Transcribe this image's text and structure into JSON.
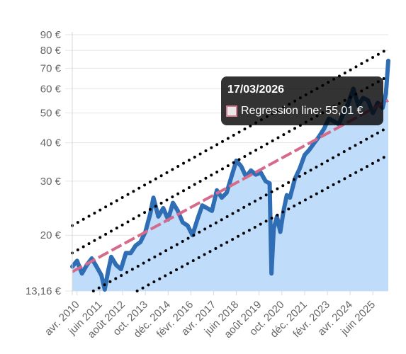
{
  "chart_data": {
    "type": "area",
    "y_scale": "log",
    "ylim": [
      13.16,
      90
    ],
    "y_ticks": [
      {
        "value": 90,
        "label": "90 €"
      },
      {
        "value": 80,
        "label": "80 €"
      },
      {
        "value": 70,
        "label": "70 €"
      },
      {
        "value": 60,
        "label": "60 €"
      },
      {
        "value": 50,
        "label": "50 €"
      },
      {
        "value": 40,
        "label": "40 €"
      },
      {
        "value": 30,
        "label": "30 €"
      },
      {
        "value": 20,
        "label": "20 €"
      },
      {
        "value": 13.16,
        "label": "13,16 €"
      }
    ],
    "xlim": [
      "2010-01-01",
      "2026-03-17"
    ],
    "x_ticks": [
      {
        "value": "2010-04-01",
        "label": "avr. 2010"
      },
      {
        "value": "2011-06-01",
        "label": "juin 2011"
      },
      {
        "value": "2012-08-01",
        "label": "août 2012"
      },
      {
        "value": "2013-10-01",
        "label": "oct. 2013"
      },
      {
        "value": "2014-12-01",
        "label": "déc. 2014"
      },
      {
        "value": "2016-02-01",
        "label": "févr. 2016"
      },
      {
        "value": "2017-04-01",
        "label": "avr. 2017"
      },
      {
        "value": "2018-06-01",
        "label": "juin 2018"
      },
      {
        "value": "2019-08-01",
        "label": "août 2019"
      },
      {
        "value": "2020-10-01",
        "label": "oct. 2020"
      },
      {
        "value": "2021-12-01",
        "label": "déc. 2021"
      },
      {
        "value": "2023-02-01",
        "label": "févr. 2023"
      },
      {
        "value": "2024-04-01",
        "label": "avr. 2024"
      },
      {
        "value": "2025-06-01",
        "label": "juin 2025"
      }
    ],
    "series": [
      {
        "kind": "price",
        "color": "#2f6db5",
        "fill": "#bfdcfa",
        "points": [
          [
            "2010-01-01",
            15.8
          ],
          [
            "2010-04-01",
            16.5
          ],
          [
            "2010-07-01",
            15.0
          ],
          [
            "2010-10-01",
            16.0
          ],
          [
            "2011-01-01",
            16.8
          ],
          [
            "2011-04-01",
            15.8
          ],
          [
            "2011-07-01",
            14.8
          ],
          [
            "2011-09-01",
            13.3
          ],
          [
            "2011-11-01",
            15.2
          ],
          [
            "2012-01-01",
            17.0
          ],
          [
            "2012-04-01",
            16.0
          ],
          [
            "2012-07-01",
            15.5
          ],
          [
            "2012-10-01",
            17.5
          ],
          [
            "2013-01-01",
            17.5
          ],
          [
            "2013-04-01",
            18.5
          ],
          [
            "2013-07-01",
            19.0
          ],
          [
            "2013-10-01",
            20.5
          ],
          [
            "2014-01-01",
            23.5
          ],
          [
            "2014-03-01",
            26.5
          ],
          [
            "2014-06-01",
            23.0
          ],
          [
            "2014-09-01",
            24.5
          ],
          [
            "2014-12-01",
            22.5
          ],
          [
            "2015-03-01",
            25.5
          ],
          [
            "2015-06-01",
            24.0
          ],
          [
            "2015-09-01",
            22.0
          ],
          [
            "2015-12-01",
            21.5
          ],
          [
            "2016-03-01",
            20.0
          ],
          [
            "2016-06-01",
            22.5
          ],
          [
            "2016-09-01",
            25.0
          ],
          [
            "2016-12-01",
            24.5
          ],
          [
            "2017-03-01",
            24.0
          ],
          [
            "2017-06-01",
            28.0
          ],
          [
            "2017-09-01",
            26.5
          ],
          [
            "2017-12-01",
            27.5
          ],
          [
            "2018-03-01",
            31.0
          ],
          [
            "2018-06-01",
            35.0
          ],
          [
            "2018-09-01",
            33.5
          ],
          [
            "2018-12-01",
            31.0
          ],
          [
            "2019-03-01",
            32.5
          ],
          [
            "2019-06-01",
            31.5
          ],
          [
            "2019-09-01",
            32.0
          ],
          [
            "2019-12-01",
            30.0
          ],
          [
            "2020-02-15",
            29.5
          ],
          [
            "2020-03-20",
            15.0
          ],
          [
            "2020-05-01",
            21.0
          ],
          [
            "2020-07-01",
            23.0
          ],
          [
            "2020-09-01",
            20.5
          ],
          [
            "2020-11-01",
            24.0
          ],
          [
            "2021-01-01",
            27.0
          ],
          [
            "2021-03-01",
            26.5
          ],
          [
            "2021-06-01",
            30.5
          ],
          [
            "2021-09-01",
            33.0
          ],
          [
            "2021-12-01",
            36.5
          ],
          [
            "2022-03-01",
            38.0
          ],
          [
            "2022-06-01",
            40.0
          ],
          [
            "2022-09-01",
            42.0
          ],
          [
            "2022-12-01",
            44.5
          ],
          [
            "2023-03-01",
            48.0
          ],
          [
            "2023-06-01",
            47.0
          ],
          [
            "2023-09-01",
            46.0
          ],
          [
            "2023-12-01",
            50.0
          ],
          [
            "2024-03-01",
            54.0
          ],
          [
            "2024-06-01",
            60.0
          ],
          [
            "2024-09-01",
            53.0
          ],
          [
            "2024-12-01",
            56.0
          ],
          [
            "2025-03-01",
            55.0
          ],
          [
            "2025-06-01",
            50.0
          ],
          [
            "2025-09-01",
            54.0
          ],
          [
            "2025-12-01",
            52.0
          ],
          [
            "2026-02-01",
            58.0
          ],
          [
            "2026-03-17",
            74.0
          ]
        ]
      },
      {
        "kind": "regression",
        "color": "#d66a8a",
        "dash": "long-dash",
        "points": [
          [
            "2010-01-01",
            15.2
          ],
          [
            "2026-03-17",
            55.01
          ]
        ]
      },
      {
        "kind": "band",
        "color": "#000000",
        "dash": "dotted",
        "points": [
          [
            "2010-01-01",
            21.5
          ],
          [
            "2026-03-17",
            81.0
          ]
        ]
      },
      {
        "kind": "band",
        "color": "#000000",
        "dash": "dotted",
        "points": [
          [
            "2010-01-01",
            17.5
          ],
          [
            "2026-03-17",
            66.0
          ]
        ]
      },
      {
        "kind": "band",
        "color": "#000000",
        "dash": "dotted",
        "points": [
          [
            "2011-02-01",
            13.16
          ],
          [
            "2026-03-17",
            45.0
          ]
        ]
      },
      {
        "kind": "band",
        "color": "#000000",
        "dash": "dotted",
        "points": [
          [
            "2013-05-01",
            13.16
          ],
          [
            "2026-03-17",
            36.5
          ]
        ]
      }
    ],
    "grid": "horizontal",
    "tooltip": {
      "title": "17/03/2026",
      "text": "Regression line: 55,01 €"
    }
  }
}
